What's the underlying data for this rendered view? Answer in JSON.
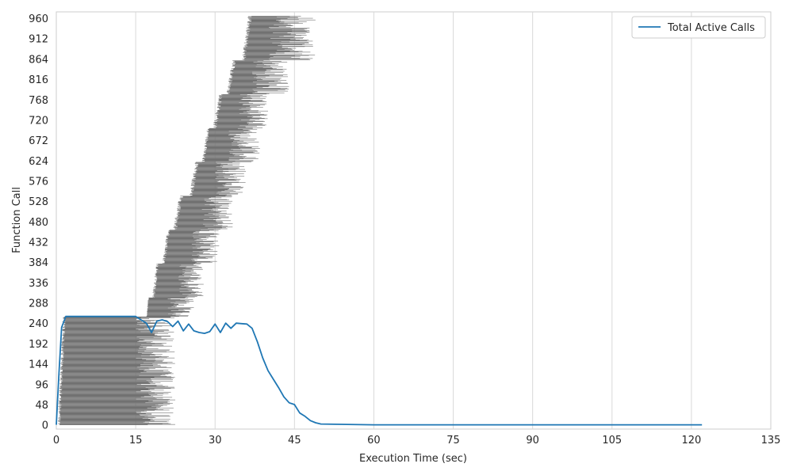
{
  "chart_data": {
    "type": "line",
    "title": "",
    "xlabel": "Execution Time (sec)",
    "ylabel": "Function Call",
    "xlim": [
      0,
      135
    ],
    "ylim": [
      -10,
      975
    ],
    "x_ticks": [
      0,
      15,
      30,
      45,
      60,
      75,
      90,
      105,
      120,
      135
    ],
    "y_ticks": [
      0,
      48,
      96,
      144,
      192,
      240,
      288,
      336,
      384,
      432,
      480,
      528,
      576,
      624,
      672,
      720,
      768,
      816,
      864,
      912,
      960
    ],
    "grid": "vertical",
    "legend": {
      "placement": "top-right",
      "entries": [
        "Total Active Calls"
      ]
    },
    "gantt": {
      "description": "Each function call is drawn as a horizontal gray bar from its start time to its end time",
      "color": "#707070",
      "groups": [
        {
          "calls": [
            0,
            255
          ],
          "start": [
            0.2,
            1.8
          ],
          "end": [
            15.0,
            22.5
          ]
        },
        {
          "calls": [
            256,
            300
          ],
          "start": [
            17.0,
            17.5
          ],
          "end": [
            21.0,
            26.0
          ]
        },
        {
          "calls": [
            301,
            380
          ],
          "start": [
            18.0,
            19.5
          ],
          "end": [
            23.0,
            28.0
          ]
        },
        {
          "calls": [
            381,
            460
          ],
          "start": [
            20.0,
            21.5
          ],
          "end": [
            25.5,
            31.0
          ]
        },
        {
          "calls": [
            461,
            540
          ],
          "start": [
            22.0,
            24.0
          ],
          "end": [
            27.5,
            33.5
          ]
        },
        {
          "calls": [
            541,
            620
          ],
          "start": [
            25.0,
            27.0
          ],
          "end": [
            30.0,
            36.0
          ]
        },
        {
          "calls": [
            621,
            700
          ],
          "start": [
            27.5,
            29.0
          ],
          "end": [
            32.5,
            38.5
          ]
        },
        {
          "calls": [
            701,
            780
          ],
          "start": [
            29.5,
            31.5
          ],
          "end": [
            34.5,
            40.5
          ]
        },
        {
          "calls": [
            781,
            860
          ],
          "start": [
            32.0,
            34.0
          ],
          "end": [
            37.0,
            44.0
          ]
        },
        {
          "calls": [
            861,
            965
          ],
          "start": [
            35.0,
            37.0
          ],
          "end": [
            40.0,
            49.0
          ]
        }
      ]
    },
    "series": [
      {
        "name": "Total Active Calls",
        "color": "#1f77b4",
        "x": [
          0,
          0.5,
          1.0,
          1.8,
          15.0,
          16.0,
          17.0,
          18.0,
          19.0,
          20.0,
          21.0,
          22.0,
          23.0,
          24.0,
          25.0,
          26.0,
          27.0,
          28.0,
          29.0,
          30.0,
          31.0,
          32.0,
          33.0,
          34.0,
          35.0,
          36.0,
          37.0,
          38.0,
          39.0,
          40.0,
          41.0,
          42.0,
          43.0,
          44.0,
          45.0,
          46.0,
          47.0,
          48.0,
          49.0,
          50.0,
          55.0,
          60.0,
          70.0,
          80.0,
          90.0,
          100.0,
          110.0,
          120.0,
          122.0
        ],
        "y": [
          0,
          120,
          230,
          256,
          256,
          248,
          240,
          218,
          245,
          248,
          244,
          232,
          245,
          222,
          238,
          222,
          218,
          216,
          220,
          238,
          218,
          240,
          228,
          240,
          239,
          238,
          228,
          196,
          158,
          128,
          108,
          88,
          66,
          52,
          48,
          28,
          20,
          10,
          5,
          2,
          1,
          0,
          0,
          0,
          0,
          0,
          0,
          0,
          0
        ]
      }
    ]
  }
}
